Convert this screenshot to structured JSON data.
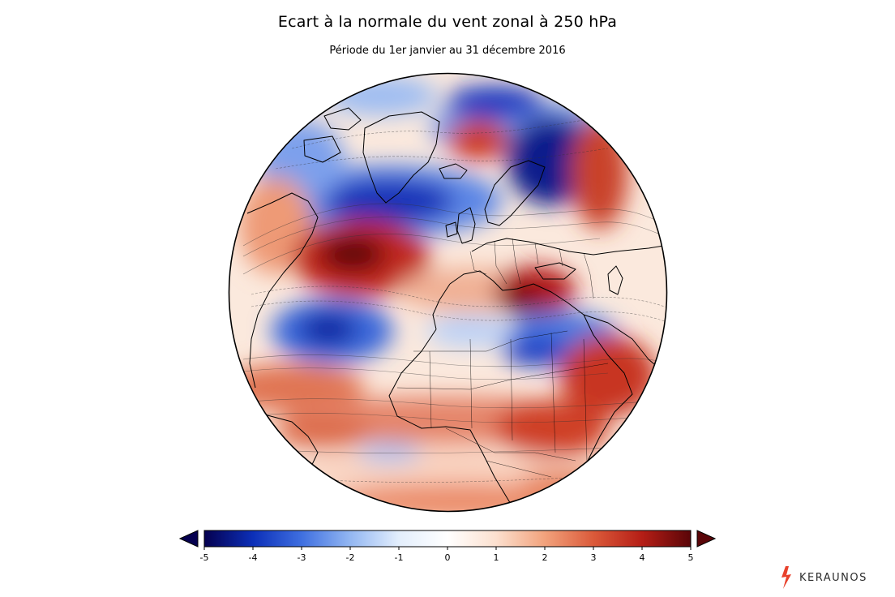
{
  "title": "Ecart à la normale du vent zonal à 250 hPa",
  "subtitle": "Période du 1er janvier au 31 décembre 2016",
  "colorbar": {
    "min": -5,
    "max": 5,
    "ticks": [
      "-5",
      "-4",
      "-3",
      "-2",
      "-1",
      "0",
      "1",
      "2",
      "3",
      "4",
      "5"
    ],
    "colors": [
      "#05004f",
      "#0c2fb8",
      "#3f6fe0",
      "#93b7f2",
      "#e3eefc",
      "#ffffff",
      "#fce0cf",
      "#f2a27c",
      "#db5a3a",
      "#b51e16",
      "#5a0508"
    ],
    "extend": "both"
  },
  "map": {
    "projection": "orthographic",
    "colors": {
      "ocean_base": "#fbece3",
      "outline": "#000000",
      "coast": "#000000"
    }
  },
  "brand": {
    "name": "KERAUNOS",
    "icon": "lightning-bolt-icon",
    "accent": "#e8412c"
  }
}
